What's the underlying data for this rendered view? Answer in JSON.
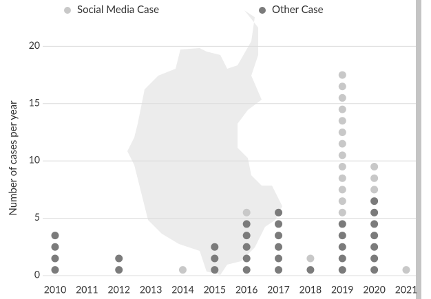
{
  "chart_data": {
    "type": "dot",
    "y_label": "Number of cases per year",
    "categories": [
      "2010",
      "2011",
      "2012",
      "2013",
      "2014",
      "2015",
      "2016",
      "2017",
      "2018",
      "2019",
      "2020",
      "2021"
    ],
    "series": [
      {
        "name": "Social Media Case",
        "color": "#c8c8c8",
        "values": [
          0,
          0,
          0,
          0,
          1,
          0,
          1,
          0,
          1,
          13,
          3,
          1
        ]
      },
      {
        "name": "Other Case",
        "color": "#7b7b7b",
        "values": [
          4,
          0,
          2,
          0,
          0,
          3,
          5,
          6,
          1,
          5,
          7,
          0
        ]
      }
    ],
    "stack_order": [
      "Other Case",
      "Social Media Case"
    ],
    "ylim": [
      0,
      22
    ],
    "yticks": [
      0,
      5,
      10,
      15,
      20
    ],
    "grid": true
  }
}
